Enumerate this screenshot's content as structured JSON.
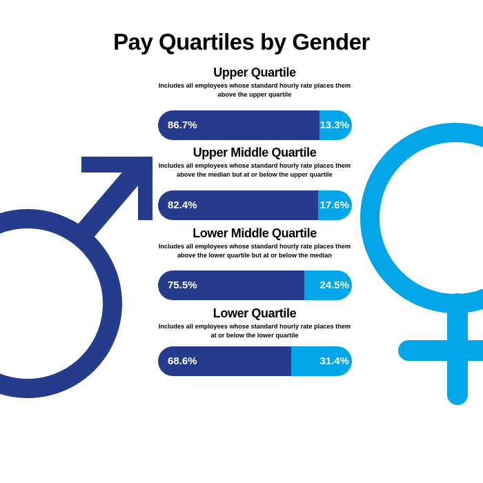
{
  "title": "Pay Quartiles by Gender",
  "colors": {
    "male": "#253c8c",
    "female": "#00a6e8"
  },
  "icons": {
    "male": "male-symbol-icon",
    "female": "female-symbol-icon"
  },
  "chart_data": {
    "type": "bar",
    "orientation": "horizontal-stacked-100",
    "title": "Pay Quartiles by Gender",
    "legend": "none",
    "categories": [
      "Upper Quartile",
      "Upper Middle Quartile",
      "Lower Middle Quartile",
      "Lower Quartile"
    ],
    "series": [
      {
        "values": [
          86.7,
          82.4,
          75.5,
          68.6
        ],
        "labels": [
          "86.7%",
          "82.4%",
          "75.5%",
          "68.6%"
        ]
      },
      {
        "values": [
          13.3,
          17.6,
          24.5,
          31.4
        ],
        "labels": [
          "13.3%",
          "17.6%",
          "24.5%",
          "31.4%"
        ]
      }
    ]
  },
  "quartiles": [
    {
      "heading": "Upper Quartile",
      "description": "Includes all employees whose standard hourly rate places them above the upper quartile"
    },
    {
      "heading": "Upper Middle Quartile",
      "description": "Includes all employees whose standard hourly rate places them above the median but at or below the upper quartile"
    },
    {
      "heading": "Lower Middle Quartile",
      "description": "Includes all employees whose standard hourly rate places them above the lower quartile but at or below the median"
    },
    {
      "heading": "Lower Quartile",
      "description": "Includes all employees whose standard hourly rate places them at or below the lower quartile"
    }
  ]
}
